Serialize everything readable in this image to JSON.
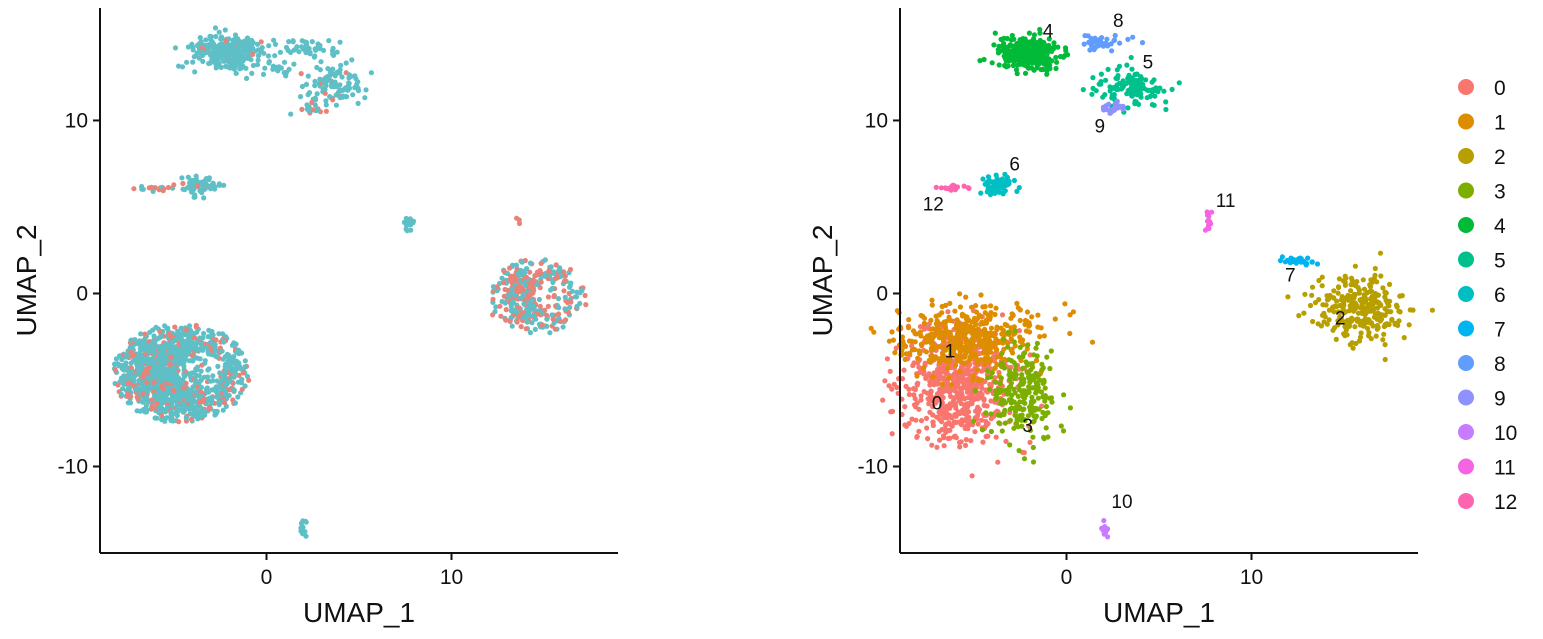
{
  "chart_data": [
    {
      "type": "scatter",
      "title": "",
      "xlabel": "UMAP_1",
      "ylabel": "UMAP_2",
      "xlim": [
        -9,
        19
      ],
      "ylim": [
        -15,
        16.5
      ],
      "xticks": [
        0,
        10
      ],
      "xtick_labels": [
        "0",
        "10"
      ],
      "yticks": [
        -10,
        0,
        10
      ],
      "ytick_labels": [
        "-10",
        "0",
        "10"
      ],
      "grid": false,
      "legend": "none",
      "color_by": "sample group (2 colors)",
      "colors": {
        "group_a": "#E8837A",
        "group_b": "#5EC0C6"
      },
      "regions": [
        {
          "name": "large-blob-left",
          "center": [
            -4.6,
            -4.6
          ],
          "spread": [
            2.3,
            1.8
          ],
          "ring": true,
          "points": 1400,
          "mix_b": 0.78
        },
        {
          "name": "blob-right",
          "center": [
            14.6,
            -0.2
          ],
          "spread": [
            1.7,
            1.4
          ],
          "ring": true,
          "points": 380,
          "mix_b": 0.55
        },
        {
          "name": "top-left",
          "center": [
            -2.0,
            13.9
          ],
          "spread": [
            0.9,
            0.45
          ],
          "ring": false,
          "points": 320,
          "mix_b": 0.97
        },
        {
          "name": "top-tail",
          "center": [
            0.3,
            12.9
          ],
          "spread": [
            0.6,
            0.25
          ],
          "ring": false,
          "points": 20,
          "mix_b": 1.0
        },
        {
          "name": "top-right",
          "center": [
            3.5,
            12.0
          ],
          "spread": [
            0.9,
            0.6
          ],
          "ring": false,
          "points": 110,
          "mix_b": 0.85
        },
        {
          "name": "top-right-strip",
          "center": [
            2.4,
            14.2
          ],
          "spread": [
            0.8,
            0.25
          ],
          "ring": false,
          "points": 40,
          "mix_b": 1.0
        },
        {
          "name": "top-lower-bit",
          "center": [
            2.5,
            10.7
          ],
          "spread": [
            0.25,
            0.25
          ],
          "ring": false,
          "points": 15,
          "mix_b": 0.6
        },
        {
          "name": "mid-left",
          "center": [
            -3.7,
            6.2
          ],
          "spread": [
            0.6,
            0.3
          ],
          "ring": false,
          "points": 60,
          "mix_b": 0.92
        },
        {
          "name": "mid-left-tail",
          "center": [
            -5.9,
            6.1
          ],
          "spread": [
            0.4,
            0.08
          ],
          "ring": false,
          "points": 20,
          "mix_b": 0.6
        },
        {
          "name": "mid-right",
          "center": [
            7.7,
            4.1
          ],
          "spread": [
            0.12,
            0.3
          ],
          "ring": false,
          "points": 15,
          "mix_b": 1.0
        },
        {
          "name": "outlier",
          "center": [
            13.6,
            4.2
          ],
          "spread": [
            0.07,
            0.1
          ],
          "ring": false,
          "points": 3,
          "mix_b": 0.0
        },
        {
          "name": "bottom",
          "center": [
            2.0,
            -13.6
          ],
          "spread": [
            0.12,
            0.25
          ],
          "ring": false,
          "points": 12,
          "mix_b": 1.0
        }
      ]
    },
    {
      "type": "scatter",
      "title": "",
      "xlabel": "UMAP_1",
      "ylabel": "UMAP_2",
      "xlim": [
        -9,
        19
      ],
      "ylim": [
        -15,
        16.5
      ],
      "xticks": [
        0,
        10
      ],
      "xtick_labels": [
        "0",
        "10"
      ],
      "yticks": [
        -10,
        0,
        10
      ],
      "ytick_labels": [
        "-10",
        "0",
        "10"
      ],
      "grid": false,
      "legend": "right",
      "color_by": "cluster",
      "legend_entries": [
        {
          "label": "0",
          "color": "#F8766D"
        },
        {
          "label": "1",
          "color": "#DE8C00"
        },
        {
          "label": "2",
          "color": "#B79F00"
        },
        {
          "label": "3",
          "color": "#7CAE00"
        },
        {
          "label": "4",
          "color": "#00BA38"
        },
        {
          "label": "5",
          "color": "#00C08B"
        },
        {
          "label": "6",
          "color": "#00BFC4"
        },
        {
          "label": "7",
          "color": "#00B4F0"
        },
        {
          "label": "8",
          "color": "#619CFF"
        },
        {
          "label": "9",
          "color": "#8F91FF"
        },
        {
          "label": "10",
          "color": "#C77CFF"
        },
        {
          "label": "11",
          "color": "#F564E3"
        },
        {
          "label": "12",
          "color": "#FF64B0"
        }
      ],
      "clusters": [
        {
          "id": 0,
          "center": [
            -5.8,
            -5.3
          ],
          "spread": [
            1.6,
            1.6
          ],
          "points": 650,
          "label": "0",
          "label_pos": [
            -7.0,
            -6.7
          ]
        },
        {
          "id": 1,
          "center": [
            -5.2,
            -2.6
          ],
          "spread": [
            1.9,
            1.0
          ],
          "points": 420,
          "label": "1",
          "label_pos": [
            -6.3,
            -3.7
          ]
        },
        {
          "id": 2,
          "center": [
            15.8,
            -0.8
          ],
          "spread": [
            1.2,
            1.0
          ],
          "points": 280,
          "label": "2",
          "label_pos": [
            14.8,
            -1.8
          ]
        },
        {
          "id": 3,
          "center": [
            -2.4,
            -5.8
          ],
          "spread": [
            0.9,
            1.4
          ],
          "points": 230,
          "label": "3",
          "label_pos": [
            -2.1,
            -8.0
          ]
        },
        {
          "id": 4,
          "center": [
            -2.1,
            13.9
          ],
          "spread": [
            0.85,
            0.45
          ],
          "points": 330,
          "label": "4",
          "label_pos": [
            -1.0,
            14.8
          ]
        },
        {
          "id": 5,
          "center": [
            3.5,
            12.0
          ],
          "spread": [
            0.9,
            0.6
          ],
          "points": 120,
          "label": "5",
          "label_pos": [
            4.4,
            13.0
          ]
        },
        {
          "id": 6,
          "center": [
            -3.7,
            6.3
          ],
          "spread": [
            0.6,
            0.3
          ],
          "points": 60,
          "label": "6",
          "label_pos": [
            -2.8,
            7.1
          ]
        },
        {
          "id": 7,
          "center": [
            12.5,
            1.9
          ],
          "spread": [
            0.6,
            0.1
          ],
          "points": 30,
          "label": "7",
          "label_pos": [
            12.1,
            0.7
          ]
        },
        {
          "id": 8,
          "center": [
            2.1,
            14.5
          ],
          "spread": [
            0.7,
            0.2
          ],
          "points": 40,
          "label": "8",
          "label_pos": [
            2.8,
            15.4
          ]
        },
        {
          "id": 9,
          "center": [
            2.5,
            10.8
          ],
          "spread": [
            0.35,
            0.2
          ],
          "points": 25,
          "label": "9",
          "label_pos": [
            1.8,
            9.3
          ]
        },
        {
          "id": 10,
          "center": [
            2.0,
            -13.6
          ],
          "spread": [
            0.12,
            0.25
          ],
          "points": 12,
          "label": "10",
          "label_pos": [
            3.0,
            -12.4
          ]
        },
        {
          "id": 11,
          "center": [
            7.7,
            4.1
          ],
          "spread": [
            0.12,
            0.3
          ],
          "points": 15,
          "label": "11",
          "label_pos": [
            8.6,
            5.0
          ]
        },
        {
          "id": 12,
          "center": [
            -6.0,
            6.1
          ],
          "spread": [
            0.4,
            0.08
          ],
          "points": 18,
          "label": "12",
          "label_pos": [
            -7.2,
            4.8
          ]
        }
      ]
    }
  ]
}
